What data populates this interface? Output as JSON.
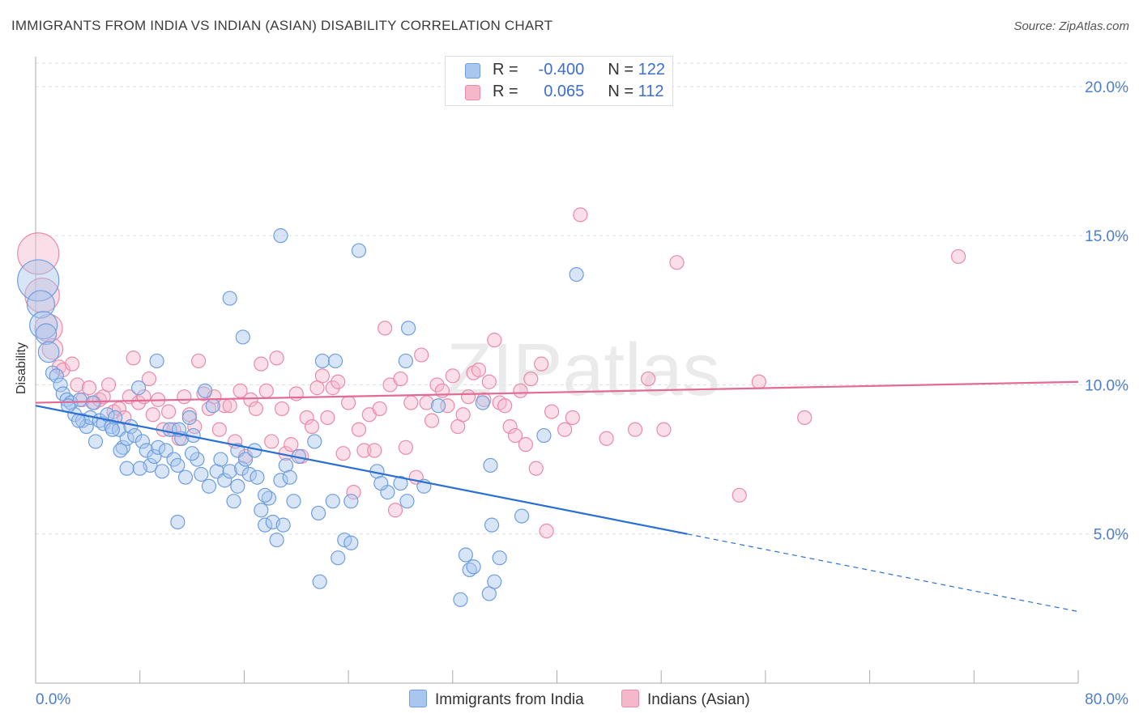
{
  "title": "IMMIGRANTS FROM INDIA VS INDIAN (ASIAN) DISABILITY CORRELATION CHART",
  "source": "Source: ZipAtlas.com",
  "watermark": "ZIPatlas",
  "legend": {
    "rows": [
      {
        "r_label": "R =",
        "r_value": "-0.400",
        "n_label": "N =",
        "n_value": "122"
      },
      {
        "r_label": "R =",
        "r_value": "0.065",
        "n_label": "N =",
        "n_value": "112"
      }
    ]
  },
  "colors": {
    "blue_fill": "#a9c6ee",
    "blue_stroke": "#6e9ee0",
    "blue_line": "#2a6fd4",
    "pink_fill": "#f5b8cb",
    "pink_stroke": "#e98aa9",
    "pink_line": "#e36a93",
    "axis_text": "#4a7fd0",
    "grid": "#dddddd"
  },
  "chart_data": {
    "type": "scatter",
    "title": "IMMIGRANTS FROM INDIA VS INDIAN (ASIAN) DISABILITY CORRELATION CHART",
    "xlabel": "",
    "ylabel": "Disability",
    "xlim": [
      0,
      80
    ],
    "ylim": [
      0,
      21
    ],
    "x_tick_labels": [
      "0.0%",
      "80.0%"
    ],
    "y_ticks": [
      5,
      10,
      15,
      20
    ],
    "y_tick_labels": [
      "5.0%",
      "10.0%",
      "15.0%",
      "20.0%"
    ],
    "grid": true,
    "legend_position": "top-center",
    "series": [
      {
        "name": "Immigrants from India",
        "color": "#a9c6ee",
        "r": -0.4,
        "n": 122,
        "trend": {
          "x0": 0,
          "y0": 9.3,
          "x1": 50,
          "y1": 5.0,
          "dashed_to_x": 80,
          "dashed_to_y": 2.4
        },
        "points": [
          [
            0.2,
            13.5,
            3
          ],
          [
            0.4,
            12.7,
            2
          ],
          [
            0.6,
            12.0,
            2
          ],
          [
            0.8,
            11.7,
            1.5
          ],
          [
            1.0,
            11.1,
            1.5
          ],
          [
            1.3,
            10.4,
            1
          ],
          [
            1.6,
            10.3,
            1
          ],
          [
            1.9,
            10.0,
            1
          ],
          [
            2.1,
            9.7,
            1
          ],
          [
            2.4,
            9.5,
            1
          ],
          [
            2.7,
            9.4,
            1
          ],
          [
            3.0,
            9.0,
            1
          ],
          [
            3.4,
            9.5,
            1
          ],
          [
            3.6,
            8.8,
            1
          ],
          [
            3.9,
            8.6,
            1
          ],
          [
            4.2,
            8.9,
            1
          ],
          [
            4.6,
            8.1,
            1
          ],
          [
            4.9,
            8.8,
            1
          ],
          [
            5.2,
            8.7,
            1
          ],
          [
            5.5,
            9.0,
            1
          ],
          [
            5.8,
            8.6,
            1
          ],
          [
            6.1,
            8.9,
            1
          ],
          [
            6.4,
            8.5,
            1
          ],
          [
            6.7,
            7.9,
            1
          ],
          [
            7.0,
            8.2,
            1
          ],
          [
            7.3,
            8.6,
            1
          ],
          [
            7.6,
            8.3,
            1
          ],
          [
            7.9,
            9.9,
            1
          ],
          [
            8.2,
            8.1,
            1
          ],
          [
            8.5,
            7.8,
            1
          ],
          [
            8.8,
            7.3,
            1
          ],
          [
            9.1,
            7.6,
            1
          ],
          [
            9.4,
            7.9,
            1
          ],
          [
            9.7,
            7.1,
            1
          ],
          [
            10.0,
            7.8,
            1
          ],
          [
            10.3,
            8.5,
            1
          ],
          [
            10.6,
            7.5,
            1
          ],
          [
            10.9,
            7.3,
            1
          ],
          [
            11.2,
            8.2,
            1
          ],
          [
            11.5,
            6.9,
            1
          ],
          [
            11.8,
            8.9,
            1
          ],
          [
            12.1,
            8.3,
            1
          ],
          [
            12.4,
            7.5,
            1
          ],
          [
            12.7,
            7.0,
            1
          ],
          [
            13.0,
            9.8,
            1
          ],
          [
            13.3,
            6.6,
            1
          ],
          [
            13.6,
            9.3,
            1
          ],
          [
            13.9,
            7.1,
            1
          ],
          [
            14.2,
            7.5,
            1
          ],
          [
            14.5,
            6.8,
            1
          ],
          [
            14.9,
            7.1,
            1
          ],
          [
            15.2,
            6.1,
            1
          ],
          [
            15.5,
            7.8,
            1
          ],
          [
            15.8,
            7.2,
            1
          ],
          [
            16.1,
            7.5,
            1
          ],
          [
            16.4,
            7.0,
            1
          ],
          [
            16.8,
            7.8,
            1
          ],
          [
            17.0,
            6.9,
            1
          ],
          [
            17.3,
            5.8,
            1
          ],
          [
            17.6,
            5.3,
            1
          ],
          [
            17.9,
            6.2,
            1
          ],
          [
            18.2,
            5.4,
            1
          ],
          [
            18.5,
            4.8,
            1
          ],
          [
            18.8,
            6.8,
            1
          ],
          [
            19.2,
            7.3,
            1
          ],
          [
            19.5,
            6.9,
            1
          ],
          [
            19.8,
            6.1,
            1
          ],
          [
            20.2,
            7.6,
            1
          ],
          [
            21.4,
            8.1,
            1
          ],
          [
            21.7,
            5.7,
            1
          ],
          [
            22.8,
            6.1,
            1
          ],
          [
            23.2,
            4.2,
            1
          ],
          [
            23.7,
            4.8,
            1
          ],
          [
            24.2,
            4.7,
            1
          ],
          [
            22.0,
            10.8,
            1
          ],
          [
            23.0,
            10.8,
            1
          ],
          [
            26.2,
            7.1,
            1
          ],
          [
            27.0,
            6.4,
            1
          ],
          [
            28.0,
            6.7,
            1
          ],
          [
            28.5,
            6.1,
            1
          ],
          [
            29.8,
            6.6,
            1
          ],
          [
            33.0,
            4.3,
            1
          ],
          [
            33.3,
            3.8,
            1
          ],
          [
            33.6,
            3.9,
            1
          ],
          [
            34.8,
            3.0,
            1
          ],
          [
            34.9,
            7.3,
            1
          ],
          [
            35.0,
            5.3,
            1
          ],
          [
            35.6,
            4.2,
            1
          ],
          [
            39.0,
            8.3,
            1
          ],
          [
            41.5,
            13.7,
            1
          ],
          [
            2.5,
            9.3,
            1
          ],
          [
            3.3,
            8.8,
            1
          ],
          [
            4.4,
            9.4,
            1
          ],
          [
            5.9,
            8.5,
            1
          ],
          [
            6.5,
            7.8,
            1
          ],
          [
            8.0,
            7.2,
            1
          ],
          [
            9.3,
            10.8,
            1
          ],
          [
            10.9,
            5.4,
            1
          ],
          [
            12.0,
            7.7,
            1
          ],
          [
            14.9,
            12.9,
            1
          ],
          [
            15.9,
            11.6,
            1
          ],
          [
            17.6,
            6.3,
            1
          ],
          [
            18.8,
            15.0,
            1
          ],
          [
            24.8,
            14.5,
            1
          ],
          [
            28.6,
            11.9,
            1
          ],
          [
            28.4,
            10.8,
            1
          ],
          [
            30.9,
            9.3,
            1
          ],
          [
            32.6,
            2.8,
            1
          ],
          [
            34.3,
            9.4,
            1
          ],
          [
            35.2,
            3.4,
            1
          ],
          [
            37.3,
            5.6,
            1
          ],
          [
            26.5,
            6.7,
            1
          ],
          [
            24.2,
            6.1,
            1
          ],
          [
            21.8,
            3.4,
            1
          ],
          [
            19.0,
            5.3,
            1
          ],
          [
            15.5,
            6.6,
            1
          ],
          [
            11.0,
            8.5,
            1
          ],
          [
            7.0,
            7.2,
            1
          ]
        ]
      },
      {
        "name": "Indians (Asian)",
        "color": "#f5b8cb",
        "r": 0.065,
        "n": 112,
        "trend": {
          "x0": 0,
          "y0": 9.4,
          "x1": 80,
          "y1": 10.1
        },
        "points": [
          [
            0.2,
            14.4,
            3
          ],
          [
            0.5,
            13.0,
            2.5
          ],
          [
            1.0,
            11.9,
            2
          ],
          [
            1.3,
            11.2,
            1.5
          ],
          [
            1.8,
            10.6,
            1
          ],
          [
            2.1,
            10.5,
            1
          ],
          [
            2.8,
            10.7,
            1
          ],
          [
            3.2,
            10.0,
            1
          ],
          [
            3.6,
            9.5,
            1
          ],
          [
            4.1,
            9.9,
            1
          ],
          [
            4.5,
            9.4,
            1
          ],
          [
            4.9,
            9.5,
            1
          ],
          [
            5.2,
            9.6,
            1
          ],
          [
            5.6,
            10.0,
            1
          ],
          [
            6.0,
            9.1,
            1
          ],
          [
            6.4,
            9.2,
            1
          ],
          [
            6.8,
            8.9,
            1
          ],
          [
            7.2,
            9.6,
            1
          ],
          [
            7.5,
            10.9,
            1
          ],
          [
            7.9,
            9.4,
            1
          ],
          [
            8.3,
            9.6,
            1
          ],
          [
            8.7,
            10.2,
            1
          ],
          [
            9.0,
            9.0,
            1
          ],
          [
            9.4,
            9.5,
            1
          ],
          [
            9.8,
            8.5,
            1
          ],
          [
            10.2,
            9.1,
            1
          ],
          [
            10.6,
            8.5,
            1
          ],
          [
            11.0,
            8.2,
            1
          ],
          [
            11.4,
            9.6,
            1
          ],
          [
            11.8,
            9.0,
            1
          ],
          [
            12.2,
            8.6,
            1
          ],
          [
            12.5,
            10.8,
            1
          ],
          [
            12.9,
            9.7,
            1
          ],
          [
            13.3,
            9.2,
            1
          ],
          [
            13.7,
            9.6,
            1
          ],
          [
            14.1,
            8.5,
            1
          ],
          [
            14.5,
            9.3,
            1
          ],
          [
            14.9,
            9.3,
            1
          ],
          [
            15.3,
            8.1,
            1
          ],
          [
            15.7,
            9.8,
            1
          ],
          [
            16.1,
            7.6,
            1
          ],
          [
            16.5,
            9.5,
            1
          ],
          [
            16.9,
            9.2,
            1
          ],
          [
            17.3,
            10.7,
            1
          ],
          [
            17.7,
            9.8,
            1
          ],
          [
            18.1,
            8.1,
            1
          ],
          [
            18.5,
            10.9,
            1
          ],
          [
            18.9,
            9.2,
            1
          ],
          [
            19.2,
            7.7,
            1
          ],
          [
            19.6,
            8.0,
            1
          ],
          [
            20.0,
            9.7,
            1
          ],
          [
            20.4,
            7.6,
            1
          ],
          [
            20.8,
            8.9,
            1
          ],
          [
            21.2,
            8.6,
            1
          ],
          [
            21.6,
            9.9,
            1
          ],
          [
            22.0,
            10.3,
            1
          ],
          [
            22.4,
            8.9,
            1
          ],
          [
            22.8,
            9.9,
            1
          ],
          [
            23.2,
            10.1,
            1
          ],
          [
            23.6,
            7.7,
            1
          ],
          [
            24.0,
            9.4,
            1
          ],
          [
            24.4,
            6.4,
            1
          ],
          [
            24.8,
            8.5,
            1
          ],
          [
            25.2,
            7.8,
            1
          ],
          [
            25.6,
            9.0,
            1
          ],
          [
            26.0,
            7.8,
            1
          ],
          [
            26.4,
            9.2,
            1
          ],
          [
            26.8,
            11.9,
            1
          ],
          [
            27.2,
            10.0,
            1
          ],
          [
            27.6,
            5.8,
            1
          ],
          [
            28.0,
            10.2,
            1
          ],
          [
            28.4,
            7.9,
            1
          ],
          [
            28.8,
            9.4,
            1
          ],
          [
            29.2,
            6.9,
            1
          ],
          [
            29.6,
            11.0,
            1
          ],
          [
            30.0,
            9.4,
            1
          ],
          [
            30.4,
            8.8,
            1
          ],
          [
            30.8,
            10.0,
            1
          ],
          [
            31.2,
            9.8,
            1
          ],
          [
            31.6,
            9.3,
            1
          ],
          [
            32.0,
            10.3,
            1
          ],
          [
            32.4,
            8.6,
            1
          ],
          [
            32.8,
            9.0,
            1
          ],
          [
            33.2,
            9.6,
            1
          ],
          [
            33.6,
            10.4,
            1
          ],
          [
            34.0,
            10.5,
            1
          ],
          [
            34.4,
            9.5,
            1
          ],
          [
            34.8,
            10.1,
            1
          ],
          [
            35.2,
            11.5,
            1
          ],
          [
            35.6,
            9.4,
            1
          ],
          [
            36.0,
            9.3,
            1
          ],
          [
            36.4,
            8.6,
            1
          ],
          [
            36.8,
            8.3,
            1
          ],
          [
            37.2,
            9.8,
            1
          ],
          [
            37.6,
            8.0,
            1
          ],
          [
            38.0,
            10.2,
            1
          ],
          [
            38.4,
            7.2,
            1
          ],
          [
            38.8,
            10.7,
            1
          ],
          [
            39.2,
            5.1,
            1
          ],
          [
            39.6,
            9.1,
            1
          ],
          [
            40.6,
            8.5,
            1
          ],
          [
            41.2,
            8.9,
            1
          ],
          [
            41.8,
            15.7,
            1
          ],
          [
            43.8,
            8.2,
            1
          ],
          [
            46.0,
            8.5,
            1
          ],
          [
            47.0,
            10.2,
            1
          ],
          [
            48.2,
            8.5,
            1
          ],
          [
            49.2,
            14.1,
            1
          ],
          [
            54.0,
            6.3,
            1
          ],
          [
            55.5,
            10.1,
            1
          ],
          [
            59.0,
            8.9,
            1
          ],
          [
            70.8,
            14.3,
            1
          ]
        ]
      }
    ]
  },
  "bottom_legend": {
    "series1_label": "Immigrants from India",
    "series2_label": "Indians (Asian)"
  }
}
